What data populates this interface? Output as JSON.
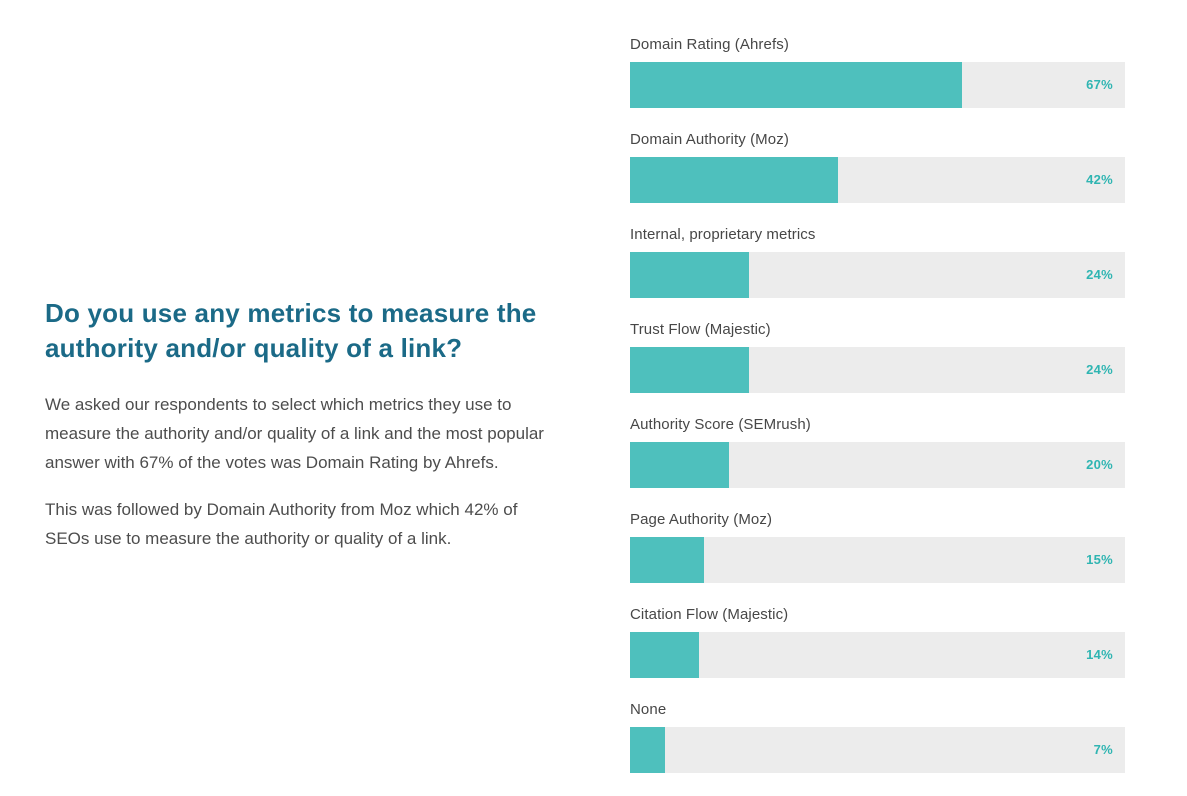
{
  "colors": {
    "accent": "#4ec0bd",
    "track": "#ececec",
    "value_text": "#2fb5b2",
    "heading_text": "#1b6a87",
    "body_text": "#4d4d4d",
    "label_text": "#474747",
    "background": "#ffffff"
  },
  "left": {
    "heading": "Do you use any metrics to measure the authority and/or quality of a link?",
    "paragraphs": [
      "We asked our respondents to select which metrics they use to measure the authority and/or quality of a link and the most popular answer with 67% of the votes was Domain Rating by Ahrefs.",
      "This was followed by Domain Authority from Moz which 42% of SEOs use to measure the authority or quality of a link."
    ]
  },
  "chart_data": {
    "type": "bar",
    "orientation": "horizontal",
    "title": "Do you use any metrics to measure the authority and/or quality of a link?",
    "categories": [
      "Domain Rating (Ahrefs)",
      "Domain Authority (Moz)",
      "Internal, proprietary metrics",
      "Trust Flow (Majestic)",
      "Authority Score (SEMrush)",
      "Page Authority (Moz)",
      "Citation Flow (Majestic)",
      "None"
    ],
    "values": [
      67,
      42,
      24,
      24,
      20,
      15,
      14,
      7
    ],
    "unit": "%",
    "xlim": [
      0,
      100
    ],
    "grid": false,
    "legend": false,
    "value_labels": [
      "67%",
      "42%",
      "24%",
      "24%",
      "20%",
      "15%",
      "14%",
      "7%"
    ]
  }
}
